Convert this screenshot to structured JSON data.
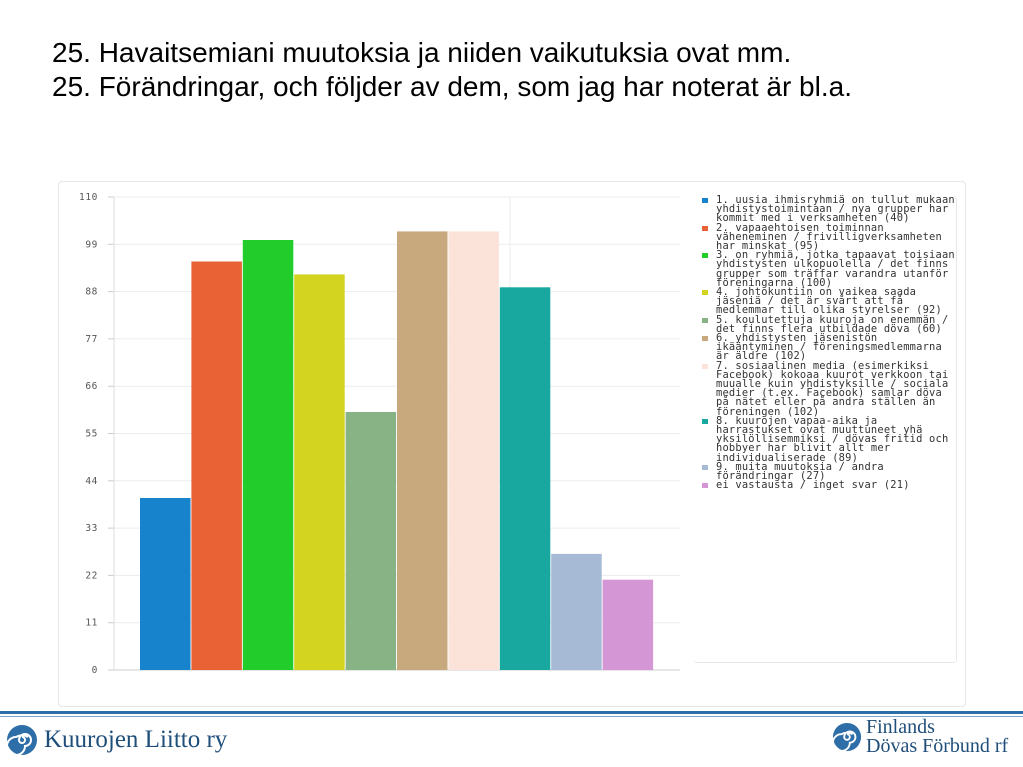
{
  "header": {
    "title_line1": "25. Havaitsemiani muutoksia ja niiden vaikutuksia ovat mm.",
    "title_line2": "25. Förändringar, och följder av dem, som jag har noterat är bl.a."
  },
  "chart_data": {
    "type": "bar",
    "ylim": [
      0,
      110
    ],
    "yticks": [
      "0",
      "11",
      "22",
      "33",
      "44",
      "55",
      "66",
      "77",
      "88",
      "99",
      "110"
    ],
    "grid": true,
    "legend_position": "right",
    "series": [
      {
        "label": "1. uusia ihmisryhmiä on tullut mukaan yhdistystoimintaan / nya grupper har kommit med i verksamheten (40)",
        "value": 40,
        "color": "#1783cc"
      },
      {
        "label": "2. vapaaehtoisen toiminnan väheneminen / frivilligverksamheten har minskat (95)",
        "value": 95,
        "color": "#e96236"
      },
      {
        "label": "3. on ryhmiä, jotka tapaavat toisiaan yhdistysten ulkopuolella / det finns grupper som träffar varandra utanför föreningarna (100)",
        "value": 100,
        "color": "#22cc2a"
      },
      {
        "label": "4. johtokuntiin on vaikea saada jäseniä / det är svårt att få medlemmar till olika styrelser (92)",
        "value": 92,
        "color": "#d3d41f"
      },
      {
        "label": "5. koulutettuja kuuroja on enemmän / det finns flera utbildade döva (60)",
        "value": 60,
        "color": "#87b385"
      },
      {
        "label": "6. yhdistysten jäsenistön ikääntyminen / föreningsmedlemmarna är äldre (102)",
        "value": 102,
        "color": "#c8a97e"
      },
      {
        "label": "7. sosiaalinen media (esimerkiksi Facebook) kokoaa kuurot verkkoon tai muualle kuin yhdistyksille / sociala medier (t.ex. Facebook) samlar döva på nätet eller på andra ställen än föreningen (102)",
        "value": 102,
        "color": "#fbe3da"
      },
      {
        "label": "8. kuurojen vapaa-aika ja harrastukset ovat muuttuneet yhä yksilöllisemmiksi / dövas fritid och hobbyer har blivit allt mer individualiserade (89)",
        "value": 89,
        "color": "#19a8a0"
      },
      {
        "label": "9. muita muutoksia / andra förändringar (27)",
        "value": 27,
        "color": "#a6b9d5"
      },
      {
        "label": "ei vastausta / inget svar (21)",
        "value": 21,
        "color": "#d596d5"
      }
    ]
  },
  "footer": {
    "left_logo_text": "Kuurojen Liitto ry",
    "right_logo_line1": "Finlands",
    "right_logo_line2": "Dövas Förbund rf"
  }
}
